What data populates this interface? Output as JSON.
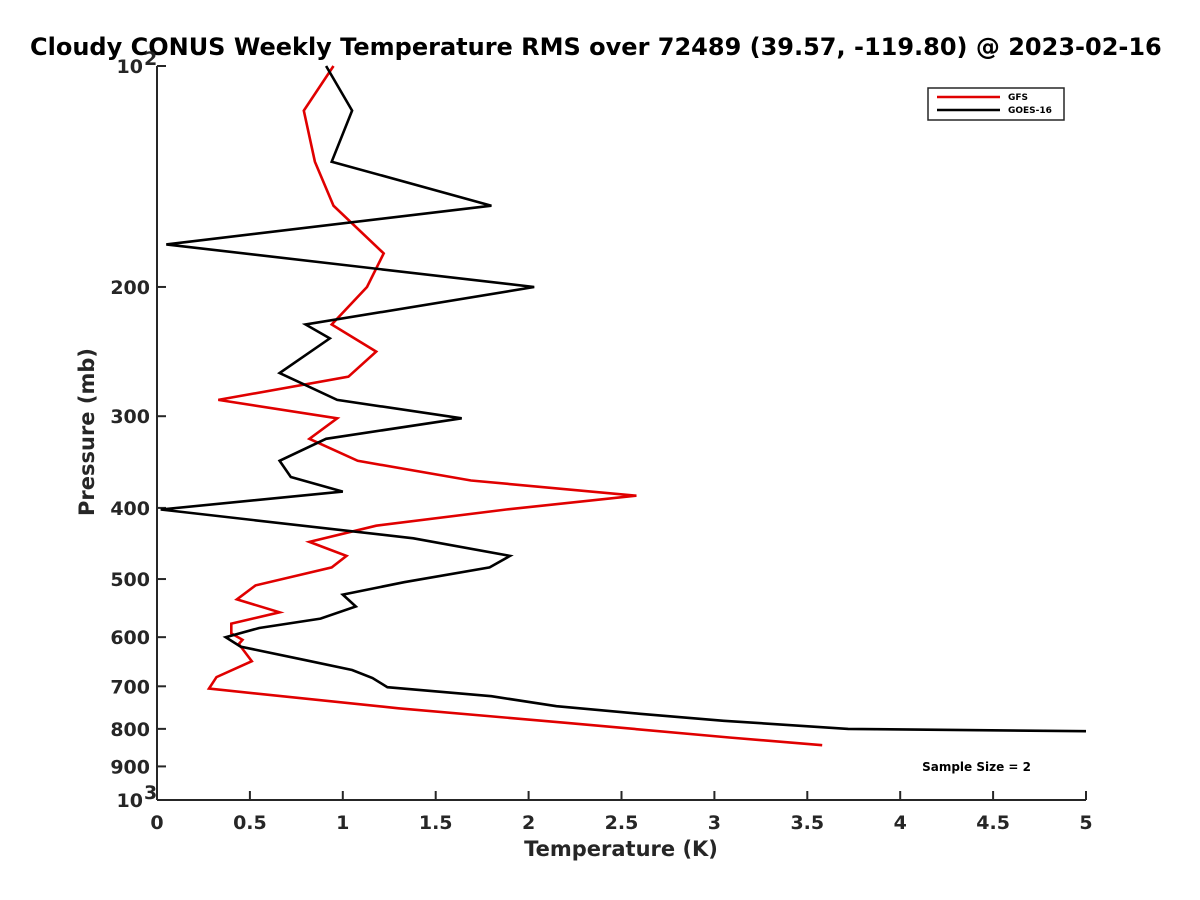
{
  "chart_data": {
    "type": "line",
    "title": "Cloudy CONUS Weekly Temperature RMS over 72489 (39.57, -119.80) @ 2023-02-16",
    "xlabel": "Temperature (K)",
    "ylabel": "Pressure (mb)",
    "xlim": [
      0,
      5
    ],
    "ylim": [
      100,
      1000
    ],
    "yscale": "log",
    "y_reversed": true,
    "x_ticks": [
      "0",
      "0.5",
      "1",
      "1.5",
      "2",
      "2.5",
      "3",
      "3.5",
      "4",
      "4.5",
      "5"
    ],
    "y_ticks": [
      {
        "value": 100,
        "base": "10",
        "exp": "2"
      },
      {
        "value": 200,
        "base": "200",
        "exp": ""
      },
      {
        "value": 300,
        "base": "300",
        "exp": ""
      },
      {
        "value": 400,
        "base": "400",
        "exp": ""
      },
      {
        "value": 500,
        "base": "500",
        "exp": ""
      },
      {
        "value": 600,
        "base": "600",
        "exp": ""
      },
      {
        "value": 700,
        "base": "700",
        "exp": ""
      },
      {
        "value": 800,
        "base": "800",
        "exp": ""
      },
      {
        "value": 900,
        "base": "900",
        "exp": ""
      },
      {
        "value": 1000,
        "base": "10",
        "exp": "3"
      }
    ],
    "grid": false,
    "legend_position": "top-right",
    "annotation": "Sample Size = 2",
    "series": [
      {
        "name": "GFS",
        "color": "#e00000",
        "points": [
          {
            "x": 0.95,
            "y": 100
          },
          {
            "x": 0.79,
            "y": 115
          },
          {
            "x": 0.85,
            "y": 135
          },
          {
            "x": 0.95,
            "y": 155
          },
          {
            "x": 1.22,
            "y": 180
          },
          {
            "x": 1.13,
            "y": 200
          },
          {
            "x": 0.94,
            "y": 225
          },
          {
            "x": 1.18,
            "y": 245
          },
          {
            "x": 1.03,
            "y": 265
          },
          {
            "x": 0.33,
            "y": 285
          },
          {
            "x": 0.97,
            "y": 302
          },
          {
            "x": 0.82,
            "y": 322
          },
          {
            "x": 1.08,
            "y": 345
          },
          {
            "x": 1.69,
            "y": 367
          },
          {
            "x": 2.58,
            "y": 385
          },
          {
            "x": 1.88,
            "y": 402
          },
          {
            "x": 1.18,
            "y": 423
          },
          {
            "x": 0.82,
            "y": 445
          },
          {
            "x": 1.02,
            "y": 465
          },
          {
            "x": 0.94,
            "y": 482
          },
          {
            "x": 0.53,
            "y": 510
          },
          {
            "x": 0.43,
            "y": 533
          },
          {
            "x": 0.66,
            "y": 555
          },
          {
            "x": 0.4,
            "y": 575
          },
          {
            "x": 0.4,
            "y": 593
          },
          {
            "x": 0.46,
            "y": 605
          },
          {
            "x": 0.44,
            "y": 613
          },
          {
            "x": 0.51,
            "y": 647
          },
          {
            "x": 0.32,
            "y": 680
          },
          {
            "x": 0.28,
            "y": 705
          },
          {
            "x": 1.3,
            "y": 750
          },
          {
            "x": 2.2,
            "y": 785
          },
          {
            "x": 3.08,
            "y": 822
          },
          {
            "x": 3.58,
            "y": 842
          }
        ]
      },
      {
        "name": "GOES-16",
        "color": "#000000",
        "points": [
          {
            "x": 0.91,
            "y": 100
          },
          {
            "x": 1.05,
            "y": 115
          },
          {
            "x": 0.94,
            "y": 135
          },
          {
            "x": 1.8,
            "y": 155
          },
          {
            "x": 0.05,
            "y": 175
          },
          {
            "x": 2.03,
            "y": 200
          },
          {
            "x": 0.8,
            "y": 225
          },
          {
            "x": 0.93,
            "y": 235
          },
          {
            "x": 0.66,
            "y": 262
          },
          {
            "x": 0.97,
            "y": 285
          },
          {
            "x": 1.64,
            "y": 302
          },
          {
            "x": 0.91,
            "y": 322
          },
          {
            "x": 0.66,
            "y": 345
          },
          {
            "x": 0.72,
            "y": 363
          },
          {
            "x": 1.0,
            "y": 380
          },
          {
            "x": 0.02,
            "y": 402
          },
          {
            "x": 1.38,
            "y": 440
          },
          {
            "x": 1.9,
            "y": 465
          },
          {
            "x": 1.79,
            "y": 482
          },
          {
            "x": 1.33,
            "y": 505
          },
          {
            "x": 1.0,
            "y": 525
          },
          {
            "x": 1.07,
            "y": 545
          },
          {
            "x": 0.88,
            "y": 566
          },
          {
            "x": 0.55,
            "y": 583
          },
          {
            "x": 0.37,
            "y": 600
          },
          {
            "x": 0.45,
            "y": 618
          },
          {
            "x": 0.8,
            "y": 645
          },
          {
            "x": 1.05,
            "y": 665
          },
          {
            "x": 1.16,
            "y": 682
          },
          {
            "x": 1.24,
            "y": 702
          },
          {
            "x": 1.8,
            "y": 722
          },
          {
            "x": 2.15,
            "y": 745
          },
          {
            "x": 2.6,
            "y": 763
          },
          {
            "x": 3.05,
            "y": 780
          },
          {
            "x": 3.72,
            "y": 800
          },
          {
            "x": 5.0,
            "y": 806
          }
        ]
      }
    ]
  }
}
